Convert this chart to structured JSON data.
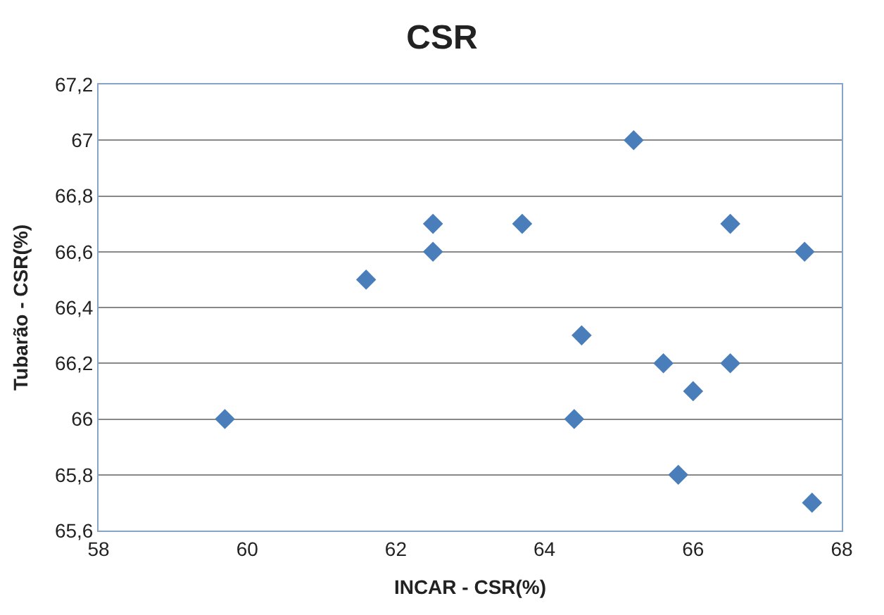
{
  "chart_data": {
    "type": "scatter",
    "title": "CSR",
    "xlabel": "INCAR - CSR(%)",
    "ylabel": "Tubarão - CSR(%)",
    "x": [
      59.7,
      61.6,
      62.5,
      62.5,
      63.7,
      65.2,
      64.5,
      64.4,
      65.6,
      66.0,
      65.8,
      66.5,
      66.5,
      67.5,
      67.6
    ],
    "values": [
      66.0,
      66.5,
      66.7,
      66.6,
      66.7,
      67.0,
      66.3,
      66.0,
      66.2,
      66.1,
      65.8,
      66.7,
      66.2,
      66.6,
      65.7
    ],
    "color": "#4a7ebb",
    "marker": "diamond",
    "grid": "y",
    "xlim": [
      58,
      68
    ],
    "xticks": [
      58,
      60,
      62,
      64,
      66,
      68
    ],
    "ylim": [
      65.6,
      67.2
    ],
    "yticks": [
      {
        "value": 65.6,
        "label": "65,6"
      },
      {
        "value": 65.8,
        "label": "65,8"
      },
      {
        "value": 66,
        "label": "66"
      },
      {
        "value": 66.2,
        "label": "66,2"
      },
      {
        "value": 66.4,
        "label": "66,4"
      },
      {
        "value": 66.6,
        "label": "66,6"
      },
      {
        "value": 66.8,
        "label": "66,8"
      },
      {
        "value": 67,
        "label": "67"
      },
      {
        "value": 67.2,
        "label": "67,2"
      }
    ]
  }
}
